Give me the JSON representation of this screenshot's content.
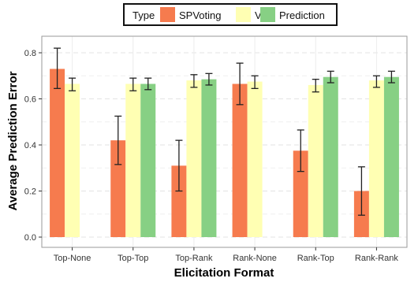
{
  "chart_data": {
    "type": "bar",
    "title": "",
    "xlabel": "Elicitation Format",
    "ylabel": "Average Prediction Error",
    "categories": [
      "Top-None",
      "Top-Top",
      "Top-Rank",
      "Rank-None",
      "Rank-Top",
      "Rank-Rank"
    ],
    "ylim": [
      0,
      0.8
    ],
    "yticks": [
      "0.0",
      "0.2",
      "0.4",
      "0.6",
      "0.8"
    ],
    "legend_title": "Type",
    "legend_position": "top",
    "grid": true,
    "series": [
      {
        "name": "SPVoting",
        "color": "#F67B4E",
        "values": [
          0.73,
          0.42,
          0.31,
          0.665,
          0.375,
          0.2
        ],
        "err_low": [
          0.645,
          0.315,
          0.2,
          0.575,
          0.285,
          0.095
        ],
        "err_high": [
          0.82,
          0.525,
          0.42,
          0.755,
          0.465,
          0.305
        ]
      },
      {
        "name": "Vote",
        "color": "#FFFFB3",
        "values": [
          0.665,
          0.665,
          0.68,
          0.675,
          0.66,
          0.68
        ],
        "err_low": [
          0.635,
          0.635,
          0.65,
          0.645,
          0.63,
          0.65
        ],
        "err_high": [
          0.69,
          0.69,
          0.705,
          0.7,
          0.685,
          0.7
        ]
      },
      {
        "name": "Prediction",
        "color": "#87D084",
        "values": [
          null,
          0.665,
          0.685,
          null,
          0.695,
          0.695
        ],
        "err_low": [
          null,
          0.64,
          0.66,
          null,
          0.67,
          0.67
        ],
        "err_high": [
          null,
          0.69,
          0.71,
          null,
          0.72,
          0.72
        ]
      }
    ]
  }
}
